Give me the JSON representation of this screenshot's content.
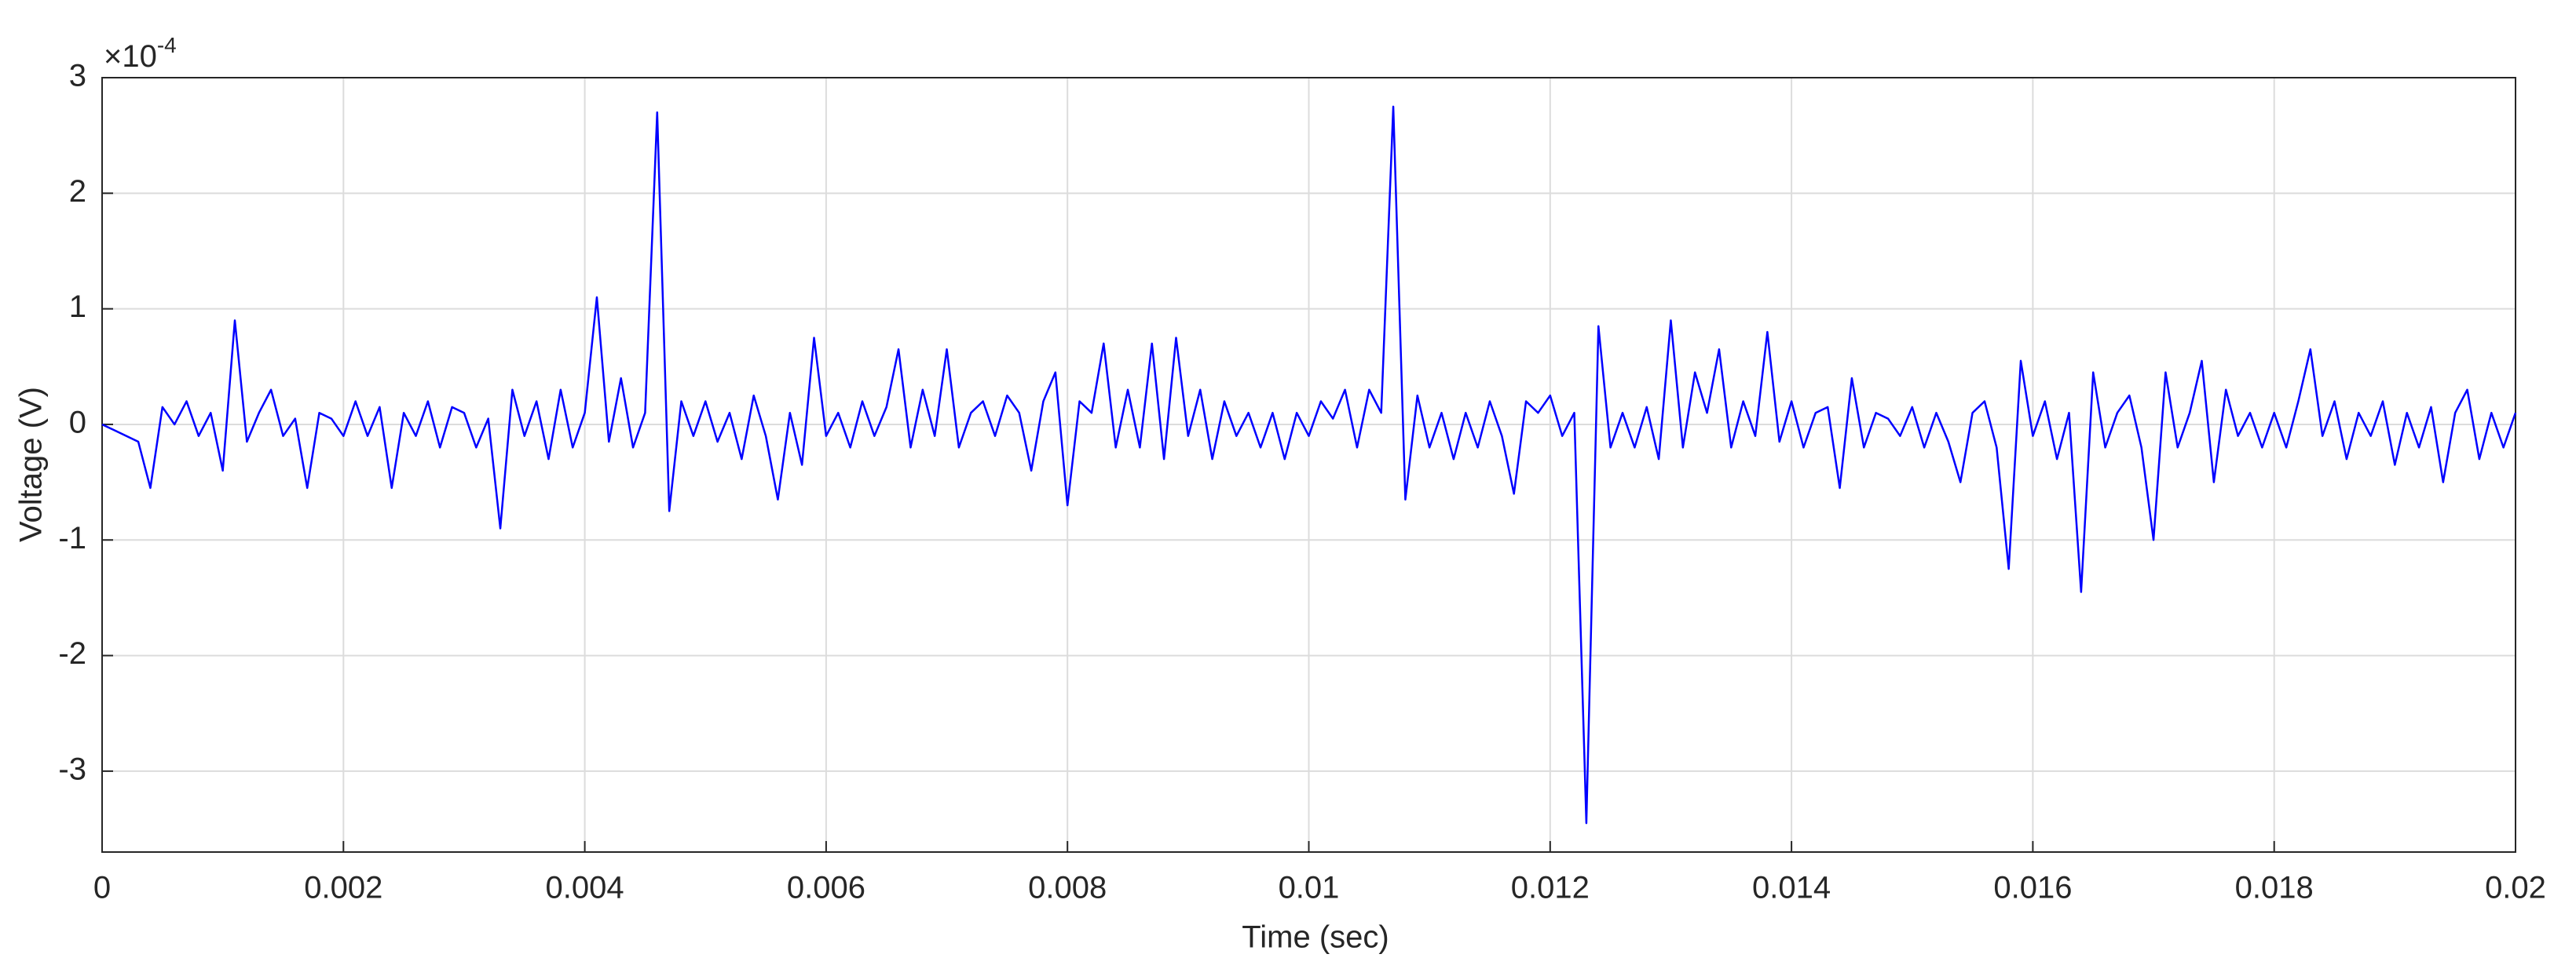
{
  "chart_data": {
    "type": "line",
    "xlabel": "Time (sec)",
    "ylabel": "Voltage (V)",
    "y_multiplier": "×10",
    "y_multiplier_exponent": "-4",
    "xlim": [
      0,
      0.02
    ],
    "ylim": [
      -3.7,
      3
    ],
    "xticks": [
      0,
      0.002,
      0.004,
      0.006,
      0.008,
      0.01,
      0.012,
      0.014,
      0.016,
      0.018,
      0.02
    ],
    "yticks": [
      -3,
      -2,
      -1,
      0,
      1,
      2,
      3
    ],
    "grid": true,
    "x": [
      0,
      0.0001,
      0.0002,
      0.0003,
      0.0004,
      0.0005,
      0.0006,
      0.0007,
      0.0008,
      0.0009,
      0.001,
      0.0011,
      0.0012,
      0.0013,
      0.0014,
      0.0015,
      0.0016,
      0.0017,
      0.0018,
      0.0019,
      0.002,
      0.0021,
      0.0022,
      0.0023,
      0.0024,
      0.0025,
      0.0026,
      0.0027,
      0.0028,
      0.0029,
      0.003,
      0.0031,
      0.0032,
      0.0033,
      0.0034,
      0.0035,
      0.0036,
      0.0037,
      0.0038,
      0.0039,
      0.004,
      0.0041,
      0.0042,
      0.0043,
      0.0044,
      0.0045,
      0.0046,
      0.0047,
      0.0048,
      0.0049,
      0.005,
      0.0051,
      0.0052,
      0.0053,
      0.0054,
      0.0055,
      0.0056,
      0.0057,
      0.0058,
      0.0059,
      0.006,
      0.0061,
      0.0062,
      0.0063,
      0.0064,
      0.0065,
      0.0066,
      0.0067,
      0.0068,
      0.0069,
      0.007,
      0.0071,
      0.0072,
      0.0073,
      0.0074,
      0.0075,
      0.0076,
      0.0077,
      0.0078,
      0.0079,
      0.008,
      0.0081,
      0.0082,
      0.0083,
      0.0084,
      0.0085,
      0.0086,
      0.0087,
      0.0088,
      0.0089,
      0.009,
      0.0091,
      0.0092,
      0.0093,
      0.0094,
      0.0095,
      0.0096,
      0.0097,
      0.0098,
      0.0099,
      0.01,
      0.0101,
      0.0102,
      0.0103,
      0.0104,
      0.0105,
      0.0106,
      0.0107,
      0.0108,
      0.0109,
      0.011,
      0.0111,
      0.0112,
      0.0113,
      0.0114,
      0.0115,
      0.0116,
      0.0117,
      0.0118,
      0.0119,
      0.012,
      0.0121,
      0.0122,
      0.0123,
      0.0124,
      0.0125,
      0.0126,
      0.0127,
      0.0128,
      0.0129,
      0.013,
      0.0131,
      0.0132,
      0.0133,
      0.0134,
      0.0135,
      0.0136,
      0.0137,
      0.0138,
      0.0139,
      0.014,
      0.0141,
      0.0142,
      0.0143,
      0.0144,
      0.0145,
      0.0146,
      0.0147,
      0.0148,
      0.0149,
      0.015,
      0.0151,
      0.0152,
      0.0153,
      0.0154,
      0.0155,
      0.0156,
      0.0157,
      0.0158,
      0.0159,
      0.016,
      0.0161,
      0.0162,
      0.0163,
      0.0164,
      0.0165,
      0.0166,
      0.0167,
      0.0168,
      0.0169,
      0.017,
      0.0171,
      0.0172,
      0.0173,
      0.0174,
      0.0175,
      0.0176,
      0.0177,
      0.0178,
      0.0179,
      0.018,
      0.0181,
      0.0182,
      0.0183,
      0.0184,
      0.0185,
      0.0186,
      0.0187,
      0.0188,
      0.0189,
      0.019,
      0.0191,
      0.0192,
      0.0193,
      0.0194,
      0.0195,
      0.0196,
      0.0197,
      0.0198,
      0.0199,
      0.02
    ],
    "series": [
      {
        "color": "#0000ff",
        "values": [
          0,
          -0.05,
          -0.1,
          -0.15,
          -0.55,
          0.15,
          0,
          0.2,
          -0.1,
          0.1,
          -0.4,
          0.9,
          -0.15,
          0.1,
          0.3,
          -0.1,
          0.05,
          -0.55,
          0.1,
          0.05,
          -0.1,
          0.2,
          -0.1,
          0.15,
          -0.55,
          0.1,
          -0.1,
          0.2,
          -0.2,
          0.15,
          0.1,
          -0.2,
          0.05,
          -0.9,
          0.3,
          -0.1,
          0.2,
          -0.3,
          0.3,
          -0.2,
          0.1,
          1.1,
          -0.15,
          0.4,
          -0.2,
          0.1,
          2.7,
          -0.75,
          0.2,
          -0.1,
          0.2,
          -0.15,
          0.1,
          -0.3,
          0.25,
          -0.1,
          -0.65,
          0.1,
          -0.35,
          0.75,
          -0.1,
          0.1,
          -0.2,
          0.2,
          -0.1,
          0.15,
          0.65,
          -0.2,
          0.3,
          -0.1,
          0.65,
          -0.2,
          0.1,
          0.2,
          -0.1,
          0.25,
          0.1,
          -0.4,
          0.2,
          0.45,
          -0.7,
          0.2,
          0.1,
          0.7,
          -0.2,
          0.3,
          -0.2,
          0.7,
          -0.3,
          0.75,
          -0.1,
          0.3,
          -0.3,
          0.2,
          -0.1,
          0.1,
          -0.2,
          0.1,
          -0.3,
          0.1,
          -0.1,
          0.2,
          0.05,
          0.3,
          -0.2,
          0.3,
          0.1,
          2.75,
          -0.65,
          0.25,
          -0.2,
          0.1,
          -0.3,
          0.1,
          -0.2,
          0.2,
          -0.1,
          -0.6,
          0.2,
          0.1,
          0.25,
          -0.1,
          0.1,
          -3.45,
          0.85,
          -0.2,
          0.1,
          -0.2,
          0.15,
          -0.3,
          0.9,
          -0.2,
          0.45,
          0.1,
          0.65,
          -0.2,
          0.2,
          -0.1,
          0.8,
          -0.15,
          0.2,
          -0.2,
          0.1,
          0.15,
          -0.55,
          0.4,
          -0.2,
          0.1,
          0.05,
          -0.1,
          0.15,
          -0.2,
          0.1,
          -0.15,
          -0.5,
          0.1,
          0.2,
          -0.2,
          -1.25,
          0.55,
          -0.1,
          0.2,
          -0.3,
          0.1,
          -1.45,
          0.45,
          -0.2,
          0.1,
          0.25,
          -0.2,
          -1.0,
          0.45,
          -0.2,
          0.1,
          0.55,
          -0.5,
          0.3,
          -0.1,
          0.1,
          -0.2,
          0.1,
          -0.2,
          0.2,
          0.65,
          -0.1,
          0.2,
          -0.3,
          0.1,
          -0.1,
          0.2,
          -0.35,
          0.1,
          -0.2,
          0.15,
          -0.5,
          0.1,
          0.3,
          -0.3,
          0.1,
          -0.2,
          0.1
        ]
      }
    ]
  }
}
